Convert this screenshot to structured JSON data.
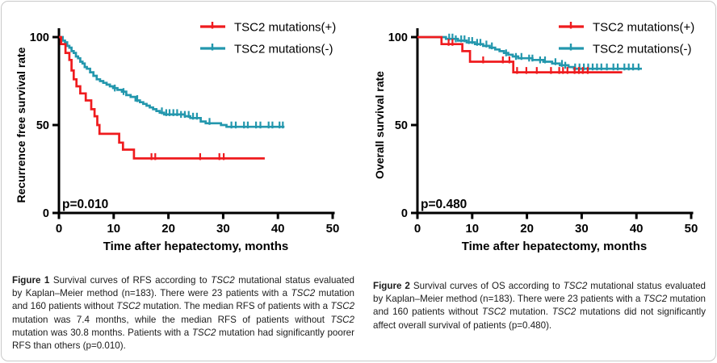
{
  "page": {
    "background": "#ffffff",
    "card_border_color": "#c9c9c9",
    "axis_color": "#000000",
    "red": "#ef1b1e",
    "teal": "#2397ad"
  },
  "chart_data": [
    {
      "type": "line",
      "subtype": "kaplan-meier-step",
      "title": "",
      "xlabel": "Time after hepatectomy, months",
      "ylabel": "Recurrence free survival rate",
      "xlim": [
        0,
        50
      ],
      "ylim": [
        0,
        100
      ],
      "xticks": [
        0,
        10,
        20,
        30,
        40,
        50
      ],
      "yticks": [
        0,
        50,
        100
      ],
      "grid": false,
      "legend_position": "top-right",
      "p_label": "p=0.010",
      "series": [
        {
          "name": "TSC2 mutations(+)",
          "color": "#ef1b1e",
          "steps": [
            [
              0,
              100
            ],
            [
              0.4,
              96
            ],
            [
              1.2,
              91
            ],
            [
              1.9,
              87
            ],
            [
              2.3,
              81
            ],
            [
              2.7,
              76
            ],
            [
              3.2,
              72
            ],
            [
              3.9,
              68
            ],
            [
              4.9,
              64
            ],
            [
              5.9,
              59
            ],
            [
              6.5,
              55
            ],
            [
              7.0,
              50
            ],
            [
              7.4,
              45
            ],
            [
              11.0,
              40
            ],
            [
              11.7,
              36
            ],
            [
              13.7,
              31
            ],
            [
              37.6,
              31
            ]
          ],
          "censors": [
            [
              16.9,
              31
            ],
            [
              17.6,
              31
            ],
            [
              25.8,
              31
            ],
            [
              29.3,
              31
            ],
            [
              30.1,
              31
            ]
          ]
        },
        {
          "name": "TSC2 mutations(-)",
          "color": "#2397ad",
          "steps": [
            [
              0,
              100
            ],
            [
              0.7,
              98
            ],
            [
              1.1,
              97
            ],
            [
              1.5,
              95
            ],
            [
              1.9,
              94
            ],
            [
              2.3,
              92
            ],
            [
              2.7,
              91
            ],
            [
              3.1,
              89
            ],
            [
              3.5,
              88
            ],
            [
              3.9,
              86
            ],
            [
              4.3,
              85
            ],
            [
              4.7,
              83
            ],
            [
              5.1,
              82
            ],
            [
              5.7,
              80
            ],
            [
              6.3,
              78
            ],
            [
              6.9,
              76
            ],
            [
              7.5,
              75
            ],
            [
              8.1,
              74
            ],
            [
              8.7,
              73
            ],
            [
              9.3,
              72
            ],
            [
              9.9,
              71
            ],
            [
              10.7,
              70
            ],
            [
              11.5,
              69
            ],
            [
              12.3,
              67
            ],
            [
              13.1,
              66
            ],
            [
              14.0,
              64
            ],
            [
              14.8,
              63
            ],
            [
              15.4,
              62
            ],
            [
              16.0,
              61
            ],
            [
              16.6,
              60
            ],
            [
              17.2,
              59
            ],
            [
              17.8,
              58
            ],
            [
              18.4,
              57
            ],
            [
              19.2,
              56
            ],
            [
              21.5,
              56
            ],
            [
              23.0,
              55
            ],
            [
              24.0,
              54
            ],
            [
              25.9,
              52
            ],
            [
              26.8,
              51
            ],
            [
              29.6,
              50
            ],
            [
              30.6,
              49
            ],
            [
              41.2,
              49
            ]
          ],
          "censors": [
            [
              10.2,
              70
            ],
            [
              11.8,
              68
            ],
            [
              14.3,
              64
            ],
            [
              18.8,
              57
            ],
            [
              19.6,
              56
            ],
            [
              20.2,
              56
            ],
            [
              20.9,
              56
            ],
            [
              21.6,
              56
            ],
            [
              22.3,
              55
            ],
            [
              23.0,
              55
            ],
            [
              23.7,
              55
            ],
            [
              24.5,
              54
            ],
            [
              25.2,
              54
            ],
            [
              27.5,
              51
            ],
            [
              31.5,
              49
            ],
            [
              32.3,
              49
            ],
            [
              33.8,
              49
            ],
            [
              34.5,
              49
            ],
            [
              36.0,
              49
            ],
            [
              36.8,
              49
            ],
            [
              38.3,
              49
            ],
            [
              39.0,
              49
            ],
            [
              40.3,
              49
            ],
            [
              40.9,
              49
            ]
          ]
        }
      ]
    },
    {
      "type": "line",
      "subtype": "kaplan-meier-step",
      "title": "",
      "xlabel": "Time after hepatectomy, months",
      "ylabel": "Overall survival rate",
      "xlim": [
        0,
        50
      ],
      "ylim": [
        0,
        100
      ],
      "xticks": [
        0,
        10,
        20,
        30,
        40,
        50
      ],
      "yticks": [
        0,
        50,
        100
      ],
      "grid": false,
      "legend_position": "top-right",
      "p_label": "p=0.480",
      "series": [
        {
          "name": "TSC2 mutations(+)",
          "color": "#ef1b1e",
          "steps": [
            [
              0,
              100
            ],
            [
              4.4,
              96
            ],
            [
              8.2,
              92
            ],
            [
              9.6,
              86
            ],
            [
              17.5,
              80
            ],
            [
              37.4,
              80
            ]
          ],
          "censors": [
            [
              5.7,
              96
            ],
            [
              6.4,
              96
            ],
            [
              12.0,
              86
            ],
            [
              15.6,
              86
            ],
            [
              16.8,
              86
            ],
            [
              18.2,
              80
            ],
            [
              19.9,
              80
            ],
            [
              21.8,
              80
            ],
            [
              24.4,
              80
            ],
            [
              25.9,
              80
            ],
            [
              26.6,
              80
            ],
            [
              27.4,
              80
            ],
            [
              28.7,
              80
            ],
            [
              29.5,
              80
            ],
            [
              30.2,
              80
            ],
            [
              31.1,
              80
            ]
          ]
        },
        {
          "name": "TSC2 mutations(-)",
          "color": "#2397ad",
          "steps": [
            [
              0,
              100
            ],
            [
              5.2,
              99
            ],
            [
              7.4,
              98
            ],
            [
              9.0,
              97
            ],
            [
              10.5,
              96
            ],
            [
              12.0,
              95
            ],
            [
              13.2,
              94
            ],
            [
              14.2,
              93
            ],
            [
              15.0,
              92
            ],
            [
              15.8,
              91
            ],
            [
              16.6,
              90
            ],
            [
              17.4,
              89
            ],
            [
              18.4,
              88
            ],
            [
              21.0,
              87
            ],
            [
              23.0,
              86
            ],
            [
              24.6,
              85
            ],
            [
              26.0,
              84
            ],
            [
              27.6,
              83
            ],
            [
              28.6,
              82
            ],
            [
              41.0,
              82
            ]
          ],
          "censors": [
            [
              5.8,
              99
            ],
            [
              6.4,
              99
            ],
            [
              7.0,
              98
            ],
            [
              8.0,
              98
            ],
            [
              8.6,
              98
            ],
            [
              9.4,
              97
            ],
            [
              10.0,
              97
            ],
            [
              10.9,
              96
            ],
            [
              11.5,
              96
            ],
            [
              12.6,
              95
            ],
            [
              13.6,
              94
            ],
            [
              16.2,
              90
            ],
            [
              18.0,
              88
            ],
            [
              19.0,
              88
            ],
            [
              20.4,
              87
            ],
            [
              21.0,
              87
            ],
            [
              22.4,
              86
            ],
            [
              23.3,
              86
            ],
            [
              25.2,
              85
            ],
            [
              26.4,
              84
            ],
            [
              27.0,
              83
            ],
            [
              28.8,
              82
            ],
            [
              29.6,
              82
            ],
            [
              30.4,
              82
            ],
            [
              31.2,
              82
            ],
            [
              32.0,
              82
            ],
            [
              32.8,
              82
            ],
            [
              33.6,
              82
            ],
            [
              34.6,
              82
            ],
            [
              35.8,
              82
            ],
            [
              36.6,
              82
            ],
            [
              37.8,
              82
            ],
            [
              38.6,
              82
            ],
            [
              39.4,
              82
            ],
            [
              40.4,
              82
            ]
          ]
        }
      ]
    }
  ],
  "figure1": {
    "caption_segments": [
      {
        "t": "Figure 1 ",
        "b": true
      },
      {
        "t": "Survival curves of RFS according to "
      },
      {
        "t": "TSC2",
        "i": true
      },
      {
        "t": " mutational status evaluated by Kaplan–Meier method (n=183). There were 23 patients with a "
      },
      {
        "t": "TSC2",
        "i": true
      },
      {
        "t": " mutation and 160 patients without "
      },
      {
        "t": "TSC2",
        "i": true
      },
      {
        "t": " mutation. The median RFS of patients with a "
      },
      {
        "t": "TSC2",
        "i": true
      },
      {
        "t": " mutation was 7.4 months, while the median RFS of patients without "
      },
      {
        "t": "TSC2",
        "i": true
      },
      {
        "t": " mutation was 30.8 months. Patients with a "
      },
      {
        "t": "TSC2",
        "i": true
      },
      {
        "t": " mutation had significantly poorer RFS than others (p=0.010)."
      }
    ]
  },
  "figure2": {
    "caption_segments": [
      {
        "t": "Figure 2 ",
        "b": true
      },
      {
        "t": "Survival curves of OS according to "
      },
      {
        "t": "TSC2",
        "i": true
      },
      {
        "t": " mutational status evaluated by Kaplan–Meier method (n=183). There were 23 patients with a "
      },
      {
        "t": "TSC2",
        "i": true
      },
      {
        "t": " mutation and 160 patients without "
      },
      {
        "t": "TSC2",
        "i": true
      },
      {
        "t": " mutation. "
      },
      {
        "t": "TSC2",
        "i": true
      },
      {
        "t": " mutations did not significantly affect overall survival of patients (p=0.480)."
      }
    ]
  }
}
